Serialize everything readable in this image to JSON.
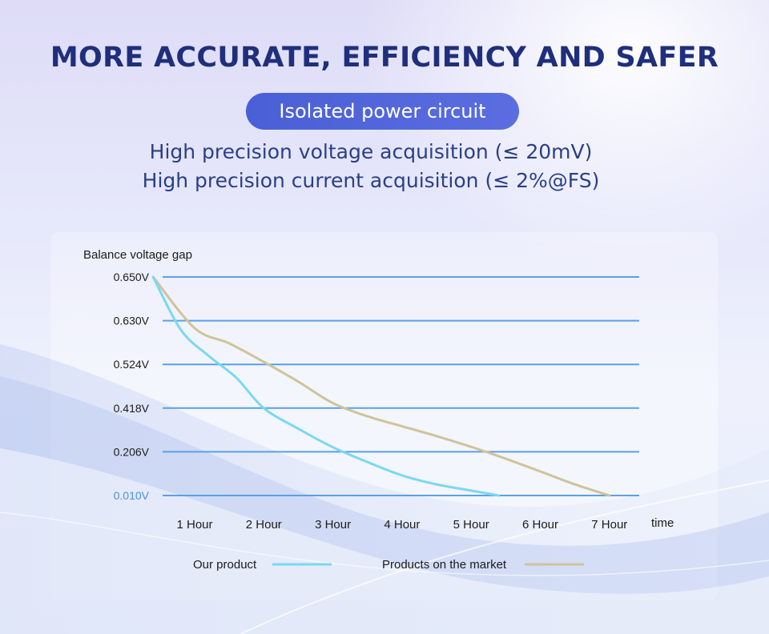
{
  "header": {
    "title": "MORE ACCURATE, EFFICIENCY AND SAFER",
    "badge": "Isolated power circuit",
    "line1": "High precision voltage acquisition (≤ 20mV)",
    "line2": "High precision current acquisition (≤ 2%@FS)"
  },
  "colors": {
    "title": "#1f2f7c",
    "badge_bg": "#4a5fd6",
    "grid": "#5aa0e8",
    "our_product": "#7ad8f2",
    "market": "#cfc49a"
  },
  "chart_data": {
    "type": "line",
    "ylabel": "Balance voltage gap",
    "xlabel": "time",
    "y_ticks": [
      "0.650V",
      "0.630V",
      "0.524V",
      "0.418V",
      "0.206V",
      "0.010V"
    ],
    "x_ticks": [
      "1 Hour",
      "2 Hour",
      "3 Hour",
      "4 Hour",
      "5 Hour",
      "6 Hour",
      "7 Hour"
    ],
    "grid": true,
    "legend_position": "bottom",
    "series": [
      {
        "name": "Our product",
        "color": "#7ad8f2",
        "x": [
          0.4,
          0.8,
          1.2,
          1.6,
          2.0,
          2.5,
          3.0,
          3.5,
          4.0,
          4.5,
          5.0,
          5.4
        ],
        "y": [
          0.65,
          0.608,
          0.545,
          0.492,
          0.418,
          0.318,
          0.228,
          0.16,
          0.1,
          0.06,
          0.032,
          0.01
        ]
      },
      {
        "name": "Products on the market",
        "color": "#cfc49a",
        "x": [
          0.4,
          1.0,
          1.5,
          2.0,
          2.5,
          3.0,
          3.5,
          4.0,
          4.5,
          5.0,
          5.5,
          6.0,
          6.5,
          7.0
        ],
        "y": [
          0.65,
          0.612,
          0.575,
          0.53,
          0.482,
          0.43,
          0.378,
          0.33,
          0.282,
          0.23,
          0.175,
          0.118,
          0.06,
          0.01
        ]
      }
    ]
  }
}
